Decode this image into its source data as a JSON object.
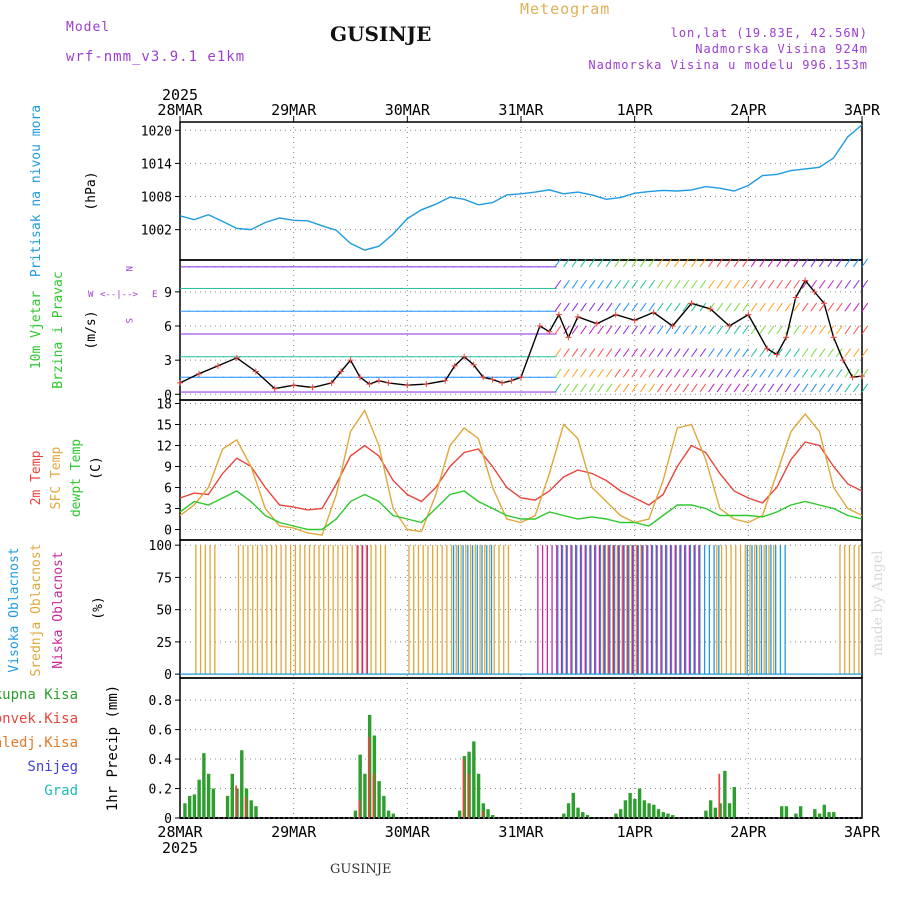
{
  "header": {
    "model_label": "Model",
    "model_name": "wrf-nmm_v3.9.1 e1km",
    "station": "GUSINJE",
    "product": "Meteogram",
    "location": "lon,lat (19.83E, 42.56N)",
    "elevation": "Nadmorska Visina 924m",
    "model_elevation": "Nadmorska Visina u modelu 996.153m"
  },
  "footer": {
    "station": "GUSINJE",
    "credit": "made by Angel"
  },
  "colors": {
    "pressure": "#1e9be0",
    "t2m": "#e8463c",
    "tsfc": "#e0a83c",
    "dewpt": "#2ec82e",
    "cloud_high": "#1e9be0",
    "cloud_mid": "#e0a83c",
    "cloud_low": "#c8289a",
    "total_precip": "#2e9e2e",
    "conv_precip": "#e8463c",
    "label_purple": "#9b3fcf"
  },
  "chart_data": {
    "type": "line",
    "time_axis": {
      "year": "2025",
      "labels": [
        "28MAR",
        "29MAR",
        "30MAR",
        "31MAR",
        "1APR",
        "2APR",
        "3APR"
      ],
      "range_hours": [
        0,
        144
      ]
    },
    "panels": [
      {
        "id": "pressure",
        "ylabel": "Pritisak na nivou mora",
        "unit": "(hPa)",
        "yticks": [
          1002,
          1008,
          1014,
          1020
        ],
        "ylim": [
          996.5,
          1021.5
        ],
        "series": [
          {
            "color_key": "pressure",
            "x": [
              0,
              3,
              6,
              9,
              12,
              15,
              18,
              21,
              24,
              27,
              30,
              33,
              36,
              39,
              42,
              45,
              48,
              51,
              54,
              57,
              60,
              63,
              66,
              69,
              72,
              75,
              78,
              81,
              84,
              87,
              90,
              93,
              96,
              99,
              102,
              105,
              108,
              111,
              114,
              117,
              120,
              123,
              126,
              129,
              132,
              135,
              138,
              141,
              144
            ],
            "y": [
              1004.5,
              1003.8,
              1004.7,
              1003.5,
              1002.2,
              1002.0,
              1003.3,
              1004.1,
              1003.7,
              1003.6,
              1002.7,
              1001.9,
              999.5,
              998.3,
              999.0,
              1001.2,
              1004.0,
              1005.6,
              1006.6,
              1007.9,
              1007.5,
              1006.5,
              1006.9,
              1008.3,
              1008.5,
              1008.8,
              1009.2,
              1008.5,
              1008.8,
              1008.3,
              1007.5,
              1007.8,
              1008.6,
              1008.9,
              1009.1,
              1009.0,
              1009.2,
              1009.8,
              1009.5,
              1009.0,
              1010.0,
              1011.8,
              1012.0,
              1012.7,
              1013.0,
              1013.3,
              1015.0,
              1018.8,
              1021.0
            ]
          }
        ]
      },
      {
        "id": "wind",
        "ylabel": "10m Vjetar",
        "ylabel2": "Brzina i Pravac",
        "unit": "(m/s)",
        "compass": {
          "n": "N",
          "s": "S",
          "e": "E",
          "w": "W"
        },
        "yticks": [
          0,
          3,
          6,
          9
        ],
        "ylim": [
          -0.5,
          11.8
        ],
        "series": [
          {
            "name": "speed",
            "color": "#e8463c",
            "x": [
              0,
              4,
              8,
              12,
              16,
              20,
              24,
              28,
              32,
              34,
              36,
              38,
              40,
              42,
              44,
              48,
              52,
              56,
              58,
              60,
              62,
              64,
              66,
              68,
              70,
              72,
              76,
              78,
              80,
              82,
              84,
              88,
              92,
              96,
              100,
              104,
              108,
              112,
              116,
              120,
              124,
              126,
              128,
              130,
              132,
              134,
              136,
              138,
              140,
              142,
              144
            ],
            "y": [
              1.0,
              1.8,
              2.5,
              3.2,
              2.0,
              0.5,
              0.8,
              0.6,
              1.0,
              2.0,
              3.0,
              1.5,
              0.9,
              1.2,
              1.0,
              0.8,
              0.9,
              1.2,
              2.5,
              3.3,
              2.6,
              1.5,
              1.3,
              1.0,
              1.2,
              1.5,
              6.0,
              5.5,
              7.0,
              5.0,
              6.8,
              6.2,
              7.0,
              6.5,
              7.2,
              6.0,
              8.0,
              7.5,
              6.0,
              7.0,
              4.0,
              3.5,
              5.0,
              8.5,
              10.0,
              9.0,
              8.0,
              5.0,
              3.0,
              1.5,
              1.6
            ]
          }
        ]
      },
      {
        "id": "temperature",
        "ylabel": "2m Temp",
        "ylabel2": "SFC Temp",
        "ylabel3": "dewpt Temp",
        "unit": "(C)",
        "yticks": [
          0,
          3,
          6,
          9,
          12,
          15,
          18
        ],
        "ylim": [
          -1.5,
          18.5
        ],
        "series": [
          {
            "name": "2m Temp",
            "color_key": "t2m",
            "x": [
              0,
              3,
              6,
              9,
              12,
              15,
              18,
              21,
              24,
              27,
              30,
              33,
              36,
              39,
              42,
              45,
              48,
              51,
              54,
              57,
              60,
              63,
              66,
              69,
              72,
              75,
              78,
              81,
              84,
              87,
              90,
              93,
              96,
              99,
              102,
              105,
              108,
              111,
              114,
              117,
              120,
              123,
              126,
              129,
              132,
              135,
              138,
              141,
              144
            ],
            "y": [
              4.5,
              5.2,
              5.0,
              8.0,
              10.2,
              9.0,
              6.0,
              3.5,
              3.2,
              2.8,
              3.0,
              6.5,
              10.5,
              12.0,
              10.5,
              7.0,
              5.0,
              4.0,
              6.0,
              9.0,
              11.0,
              11.5,
              9.0,
              6.0,
              4.5,
              4.2,
              5.5,
              7.5,
              8.5,
              8.0,
              7.0,
              5.5,
              4.5,
              3.5,
              5.0,
              9.0,
              12.0,
              11.0,
              8.0,
              5.5,
              4.5,
              3.8,
              6.0,
              10.0,
              12.5,
              12.0,
              9.0,
              6.5,
              5.5
            ]
          },
          {
            "name": "SFC Temp",
            "color_key": "tsfc",
            "x": [
              0,
              3,
              6,
              9,
              12,
              15,
              18,
              21,
              24,
              27,
              30,
              33,
              36,
              39,
              42,
              45,
              48,
              51,
              54,
              57,
              60,
              63,
              66,
              69,
              72,
              75,
              78,
              81,
              84,
              87,
              90,
              93,
              96,
              99,
              102,
              105,
              108,
              111,
              114,
              117,
              120,
              123,
              126,
              129,
              132,
              135,
              138,
              141,
              144
            ],
            "y": [
              2.0,
              3.5,
              6.0,
              11.5,
              12.8,
              9.0,
              3.0,
              0.5,
              0.2,
              -0.5,
              -0.8,
              5.0,
              14.0,
              17.0,
              12.0,
              3.0,
              0.0,
              -0.3,
              5.0,
              12.0,
              14.5,
              13.0,
              6.0,
              1.5,
              1.0,
              2.0,
              8.0,
              15.0,
              13.0,
              6.0,
              4.0,
              2.0,
              1.0,
              1.5,
              7.0,
              14.5,
              15.0,
              10.0,
              3.0,
              1.5,
              1.0,
              2.0,
              8.0,
              14.0,
              16.5,
              14.0,
              6.0,
              3.0,
              2.0
            ]
          },
          {
            "name": "dewpt Temp",
            "color_key": "dewpt",
            "x": [
              0,
              3,
              6,
              9,
              12,
              15,
              18,
              21,
              24,
              27,
              30,
              33,
              36,
              39,
              42,
              45,
              48,
              51,
              54,
              57,
              60,
              63,
              66,
              69,
              72,
              75,
              78,
              81,
              84,
              87,
              90,
              93,
              96,
              99,
              102,
              105,
              108,
              111,
              114,
              117,
              120,
              123,
              126,
              129,
              132,
              135,
              138,
              141,
              144
            ],
            "y": [
              2.5,
              4.0,
              3.5,
              4.5,
              5.5,
              4.0,
              2.0,
              1.0,
              0.5,
              0.0,
              0.0,
              1.5,
              4.0,
              5.0,
              4.0,
              2.0,
              1.5,
              1.0,
              3.0,
              5.0,
              5.5,
              4.0,
              3.0,
              2.0,
              1.5,
              1.5,
              2.5,
              2.0,
              1.5,
              1.8,
              1.5,
              1.0,
              1.0,
              0.5,
              2.0,
              3.5,
              3.5,
              3.0,
              2.0,
              2.0,
              2.0,
              1.8,
              2.5,
              3.5,
              4.0,
              3.5,
              3.0,
              2.0,
              1.5
            ]
          }
        ]
      },
      {
        "id": "clouds",
        "ylabel": "Visoka Oblacnost",
        "ylabel2": "Srednja Oblacnost",
        "ylabel3": "Niska Oblacnost",
        "unit": "(%)",
        "yticks": [
          0,
          25,
          50,
          75,
          100
        ],
        "ylim": [
          -3,
          104
        ]
      },
      {
        "id": "precip",
        "legend": [
          "Ukupna Kisa",
          "Konvek.Kisa",
          "Zaledj.Kisa",
          "Snijeg",
          "Grad"
        ],
        "legend_colors": [
          "#2e9e2e",
          "#e8463c",
          "#e07828",
          "#4040e0",
          "#20b8b8"
        ],
        "ylabel": "1hr Precip (mm)",
        "yticks": [
          0,
          0.2,
          0.4,
          0.6,
          0.8
        ],
        "ylim": [
          0,
          0.95
        ],
        "total": {
          "x": [
            1,
            2,
            3,
            4,
            5,
            6,
            7,
            10,
            11,
            12,
            13,
            14,
            15,
            16,
            37,
            38,
            39,
            40,
            41,
            42,
            43,
            44,
            45,
            59,
            60,
            61,
            62,
            63,
            64,
            65,
            66,
            81,
            82,
            83,
            84,
            85,
            86,
            92,
            93,
            94,
            95,
            96,
            97,
            98,
            99,
            100,
            101,
            102,
            103,
            104,
            111,
            112,
            113,
            114,
            115,
            116,
            117,
            127,
            128,
            130,
            131,
            134,
            135,
            136,
            137,
            138
          ],
          "y": [
            0.1,
            0.15,
            0.16,
            0.26,
            0.44,
            0.3,
            0.2,
            0.15,
            0.3,
            0.2,
            0.46,
            0.2,
            0.12,
            0.08,
            0.05,
            0.43,
            0.3,
            0.7,
            0.56,
            0.25,
            0.15,
            0.05,
            0.03,
            0.05,
            0.42,
            0.45,
            0.52,
            0.3,
            0.1,
            0.06,
            0.02,
            0.03,
            0.1,
            0.17,
            0.07,
            0.04,
            0.02,
            0.03,
            0.06,
            0.12,
            0.17,
            0.13,
            0.2,
            0.12,
            0.1,
            0.09,
            0.06,
            0.04,
            0.03,
            0.02,
            0.05,
            0.12,
            0.07,
            0.1,
            0.32,
            0.1,
            0.21,
            0.08,
            0.08,
            0.03,
            0.08,
            0.06,
            0.03,
            0.09,
            0.04,
            0.04
          ]
        },
        "conv": {
          "x": [
            12,
            14,
            38,
            40,
            41,
            60,
            61,
            64,
            114
          ],
          "y": [
            0.22,
            0.14,
            0.12,
            0.55,
            0.3,
            0.4,
            0.3,
            0.05,
            0.3
          ]
        }
      }
    ]
  }
}
